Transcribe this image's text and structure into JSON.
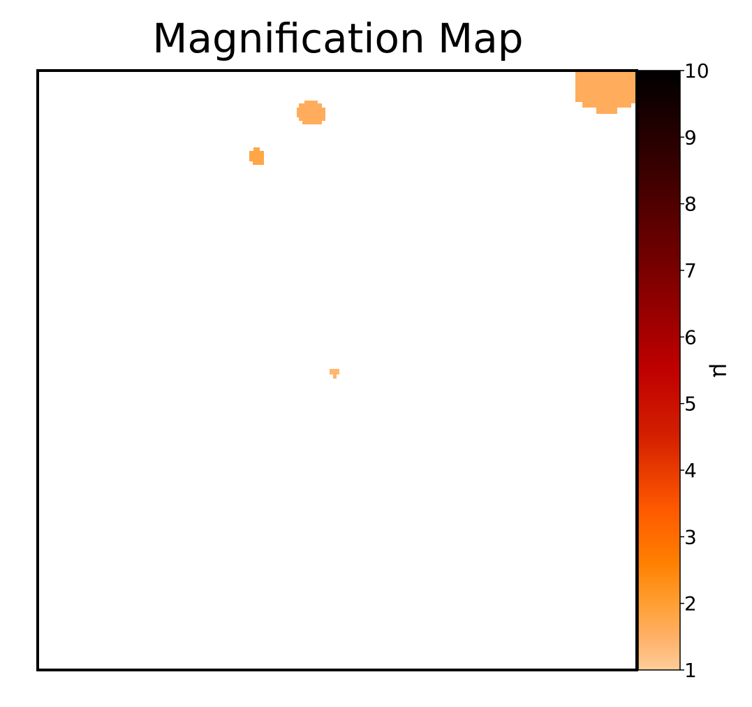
{
  "chart_data": {
    "type": "heatmap",
    "title": "Magnification Map",
    "xlabel": "",
    "ylabel": "",
    "colorbar": {
      "label": "μ",
      "range": [
        1,
        10
      ],
      "ticks": [
        "1",
        "2",
        "3",
        "4",
        "5",
        "6",
        "7",
        "8",
        "9",
        "10"
      ],
      "colormap": [
        {
          "value": 1,
          "color": "#ffcc99"
        },
        {
          "value": 1.5,
          "color": "#ffb066"
        },
        {
          "value": 2,
          "color": "#ff9f33"
        },
        {
          "value": 2.6,
          "color": "#ff8000"
        },
        {
          "value": 3.4,
          "color": "#ff5a00"
        },
        {
          "value": 4.5,
          "color": "#d42000"
        },
        {
          "value": 5.5,
          "color": "#c00000"
        },
        {
          "value": 7,
          "color": "#7a0000"
        },
        {
          "value": 8.5,
          "color": "#3a0000"
        },
        {
          "value": 10,
          "color": "#000000"
        }
      ]
    },
    "background_value": "below range (white)",
    "grid": false,
    "regions": [
      {
        "name": "top-right-blob",
        "value": 1.6
      },
      {
        "name": "upper-middle-blob",
        "value": 1.6
      },
      {
        "name": "upper-left-blob",
        "value": 1.8
      },
      {
        "name": "center-small-blob",
        "value": 1.4
      }
    ]
  }
}
